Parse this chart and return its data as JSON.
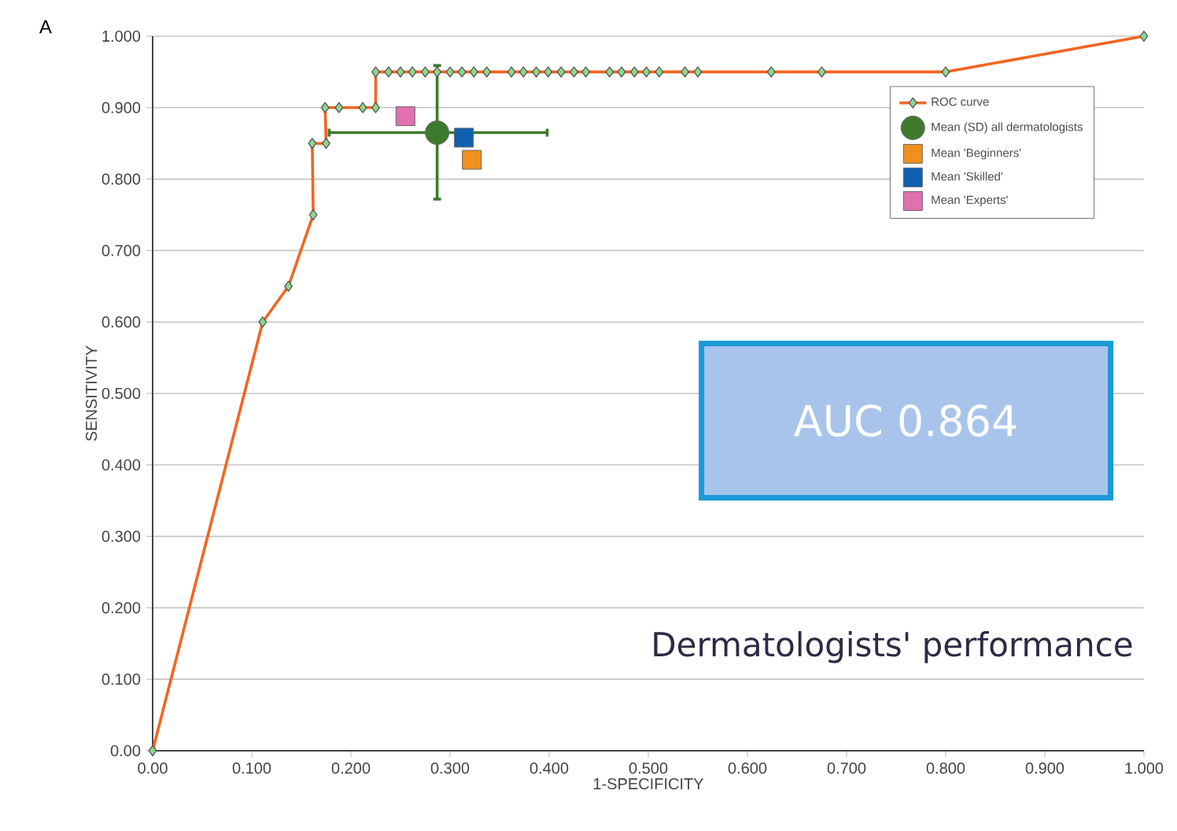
{
  "chart_data": {
    "type": "line",
    "xlabel": "1-SPECIFICITY",
    "ylabel": "SENSITIVITY",
    "xlim": [
      0,
      1
    ],
    "ylim": [
      0,
      1
    ],
    "xticks": [
      {
        "value": 0,
        "label": "0.00"
      },
      {
        "value": 0.1,
        "label": "0.100"
      },
      {
        "value": 0.2,
        "label": "0.200"
      },
      {
        "value": 0.3,
        "label": "0.300"
      },
      {
        "value": 0.4,
        "label": "0.400"
      },
      {
        "value": 0.5,
        "label": "0.500"
      },
      {
        "value": 0.6,
        "label": "0.600"
      },
      {
        "value": 0.7,
        "label": "0.700"
      },
      {
        "value": 0.8,
        "label": "0.800"
      },
      {
        "value": 0.9,
        "label": "0.900"
      },
      {
        "value": 1,
        "label": "1.000"
      }
    ],
    "yticks": [
      {
        "value": 0,
        "label": "0.00"
      },
      {
        "value": 0.1,
        "label": "0.100"
      },
      {
        "value": 0.2,
        "label": "0.200"
      },
      {
        "value": 0.3,
        "label": "0.300"
      },
      {
        "value": 0.4,
        "label": "0.400"
      },
      {
        "value": 0.5,
        "label": "0.500"
      },
      {
        "value": 0.6,
        "label": "0.600"
      },
      {
        "value": 0.7,
        "label": "0.700"
      },
      {
        "value": 0.8,
        "label": "0.800"
      },
      {
        "value": 0.9,
        "label": "0.900"
      },
      {
        "value": 1,
        "label": "1.000"
      }
    ],
    "grid": "y",
    "legend": "top right",
    "annotations": [
      "A",
      "AUC 0.864",
      "Dermatologists' performance"
    ],
    "series": [
      {
        "name": "ROC curve",
        "color": "#f26522",
        "marker": "diamond",
        "x": [
          0,
          0.111,
          0.137,
          0.162,
          0.161,
          0.175,
          0.174,
          0.188,
          0.212,
          0.225,
          0.225,
          0.238,
          0.25,
          0.262,
          0.275,
          0.287,
          0.3,
          0.312,
          0.324,
          0.337,
          0.362,
          0.374,
          0.387,
          0.399,
          0.412,
          0.425,
          0.437,
          0.461,
          0.473,
          0.486,
          0.498,
          0.511,
          0.537,
          0.55,
          0.624,
          0.675,
          0.8,
          1
        ],
        "values": [
          0,
          0.6,
          0.65,
          0.75,
          0.85,
          0.85,
          0.9,
          0.9,
          0.9,
          0.9,
          0.95,
          0.95,
          0.95,
          0.95,
          0.95,
          0.95,
          0.95,
          0.95,
          0.95,
          0.95,
          0.95,
          0.95,
          0.95,
          0.95,
          0.95,
          0.95,
          0.95,
          0.95,
          0.95,
          0.95,
          0.95,
          0.95,
          0.95,
          0.95,
          0.95,
          0.95,
          0.95,
          1
        ]
      },
      {
        "name": "Mean (SD) all dermatologists",
        "type": "scatter",
        "color": "#3e7a2e",
        "marker": "circle",
        "x": [
          0.287
        ],
        "values": [
          0.865
        ],
        "errors": [
          [
            0.772,
            0.959
          ]
        ],
        "xerrors": [
          [
            0.178,
            0.398
          ]
        ]
      },
      {
        "name": "Mean 'Beginners'",
        "type": "scatter",
        "color": "#f0901e",
        "marker": "square",
        "x": [
          0.322
        ],
        "values": [
          0.827
        ]
      },
      {
        "name": "Mean 'Skilled'",
        "type": "scatter",
        "color": "#1060b0",
        "marker": "square",
        "x": [
          0.314
        ],
        "values": [
          0.858
        ]
      },
      {
        "name": "Mean 'Experts'",
        "type": "scatter",
        "color": "#e070b0",
        "marker": "square",
        "x": [
          0.255
        ],
        "values": [
          0.888
        ]
      }
    ]
  }
}
